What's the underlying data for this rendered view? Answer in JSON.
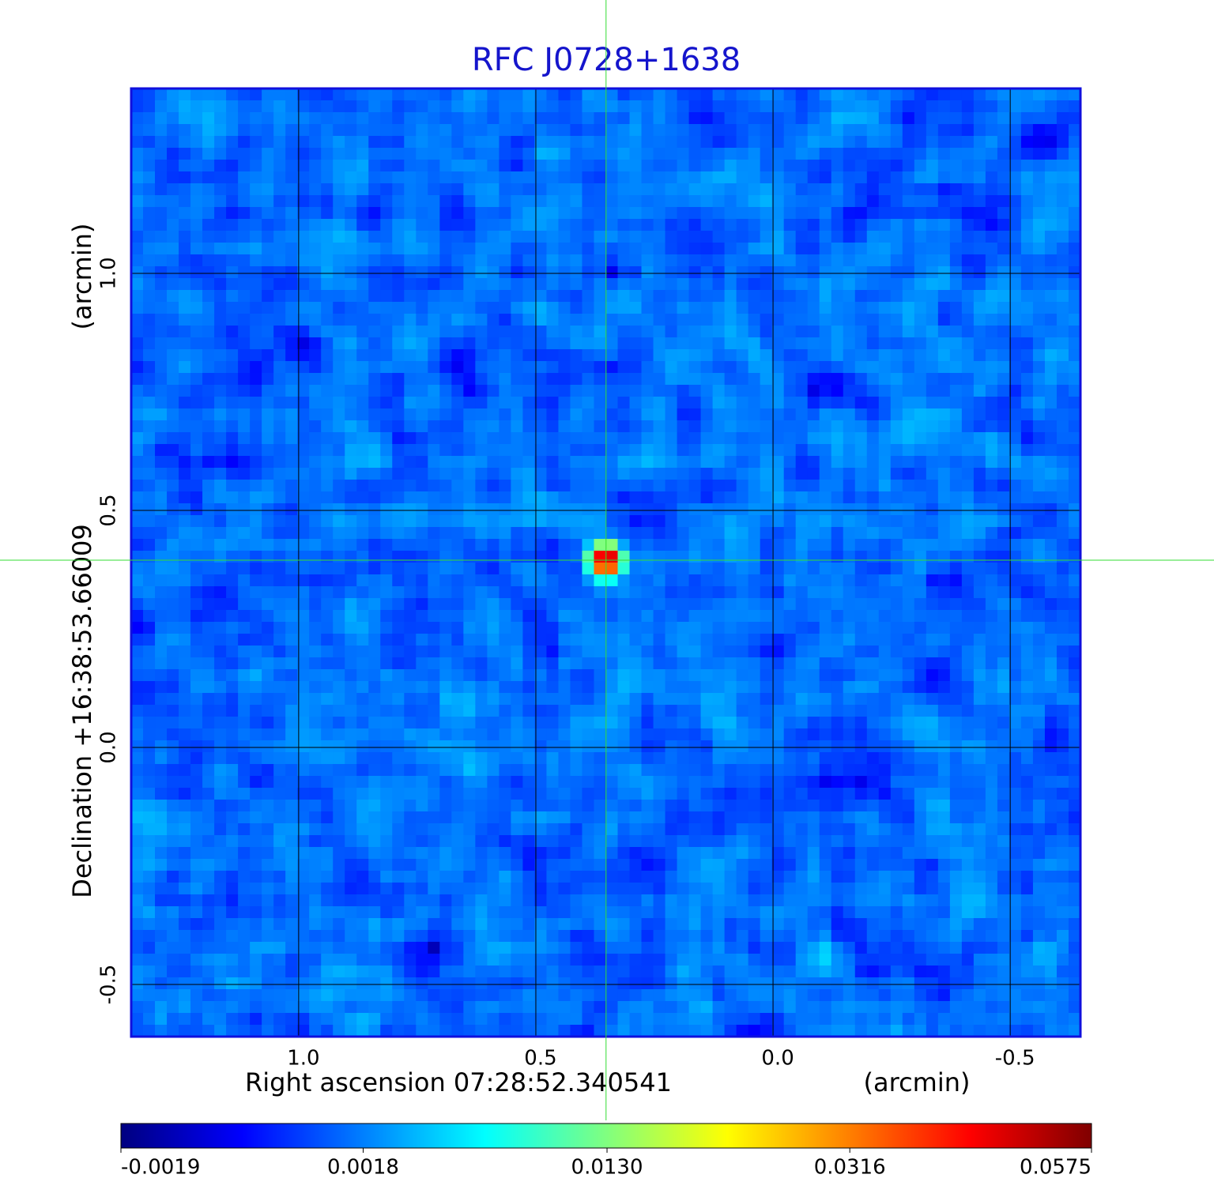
{
  "chart_data": {
    "type": "image",
    "title": "RFC J0728+1638",
    "x_label": "Right ascension  07:28:52.340541",
    "x_unit": "(arcmin)",
    "y_label": "Declination  +16:38:53.66009",
    "y_unit": "(arcmin)",
    "xlim": [
      1.353,
      -0.648
    ],
    "ylim": [
      -0.61,
      1.39
    ],
    "xticks": [
      {
        "value": 1,
        "label": "1.0"
      },
      0.5,
      {
        "value": 0,
        "label": "0.0"
      },
      -0.5
    ],
    "yticks": [
      {
        "value": 1,
        "label": "1.0"
      },
      0.5,
      {
        "value": 0,
        "label": "0.0"
      },
      -0.5
    ],
    "grid": true,
    "colormap": "jet",
    "colorbar": {
      "scale": "sqrt",
      "clim": [
        -0.0019,
        0.0575
      ],
      "ticks": [
        -0.0019,
        0.0018,
        {
          "value": 0.013,
          "label": "0.0130"
        },
        0.0316,
        0.0575
      ]
    },
    "image": {
      "background": 0.0013,
      "noise_rms": 0.0008,
      "source": {
        "x": 0.352,
        "y": 0.395,
        "peak": 0.0575,
        "width": 0.02
      }
    },
    "crosshair_color": "#33dd33"
  }
}
